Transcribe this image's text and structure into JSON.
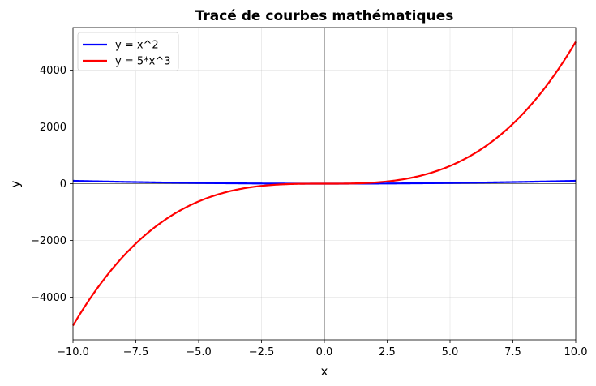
{
  "chart_data": {
    "type": "line",
    "title": "Tracé de courbes mathématiques",
    "xlabel": "x",
    "ylabel": "y",
    "xlim": [
      -10,
      10
    ],
    "ylim": [
      -5500,
      5500
    ],
    "xticks": [
      -10,
      -7.5,
      -5,
      -2.5,
      0,
      2.5,
      5,
      7.5,
      10
    ],
    "xtick_labels": [
      "−10.0",
      "−7.5",
      "−5.0",
      "−2.5",
      "0.0",
      "2.5",
      "5.0",
      "7.5",
      "10.0"
    ],
    "yticks": [
      -4000,
      -2000,
      0,
      2000,
      4000
    ],
    "ytick_labels": [
      "−4000",
      "−2000",
      "0",
      "2000",
      "4000"
    ],
    "grid": true,
    "legend_position": "top-left",
    "series": [
      {
        "name": "y = x^2",
        "color": "#0000ff",
        "expression": "x^2"
      },
      {
        "name": "y = 5*x^3",
        "color": "#ff0000",
        "expression": "5*x^3"
      }
    ]
  }
}
